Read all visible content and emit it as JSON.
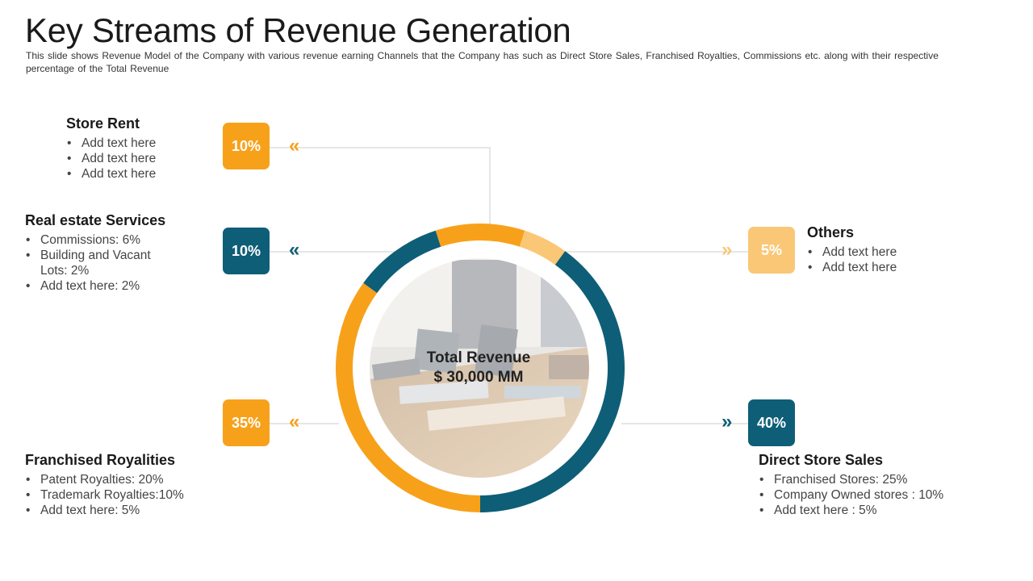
{
  "header": {
    "title": "Key Streams of Revenue Generation",
    "subtitle": "This slide shows Revenue Model of the Company with various revenue earning Channels that the Company has such as Direct Store Sales, Franchised Royalties, Commissions etc. along with their respective percentage of the Total Revenue"
  },
  "center": {
    "line1": "Total Revenue",
    "line2": "$ 30,000 MM"
  },
  "colors": {
    "orange": "#F7A11A",
    "teal": "#0E5E77",
    "light_orange": "#FAC776",
    "connector": "#cccccc"
  },
  "streams": {
    "store_rent": {
      "title": "Store Rent",
      "badge": "10%",
      "arrow": "«",
      "items": [
        "Add text here",
        "Add text here",
        "Add text here"
      ]
    },
    "real_estate": {
      "title": "Real estate Services",
      "badge": "10%",
      "arrow": "«",
      "items": [
        "Commissions: 6%",
        "Building and Vacant Lots: 2%",
        "Add text here: 2%"
      ]
    },
    "franchised": {
      "title": "Franchised Royalities",
      "badge": "35%",
      "arrow": "«",
      "items": [
        "Patent Royalties: 20%",
        "Trademark Royalties:10%",
        "Add text here: 5%"
      ]
    },
    "others": {
      "title": "Others",
      "badge": "5%",
      "arrow": "»",
      "items": [
        "Add text here",
        "Add text here"
      ]
    },
    "direct": {
      "title": "Direct Store Sales",
      "badge": "40%",
      "arrow": "»",
      "items": [
        "Franchised Stores: 25%",
        "Company Owned stores : 10%",
        "Add text here : 5%"
      ]
    }
  },
  "chart_data": {
    "type": "pie",
    "categories": [
      "Store Rent",
      "Others",
      "Direct Store Sales",
      "Franchised Royalities",
      "Real estate Services"
    ],
    "values": [
      10,
      5,
      40,
      35,
      10
    ],
    "colors": [
      "#F7A11A",
      "#FAC776",
      "#0E5E77",
      "#F7A11A",
      "#0E5E77"
    ]
  }
}
